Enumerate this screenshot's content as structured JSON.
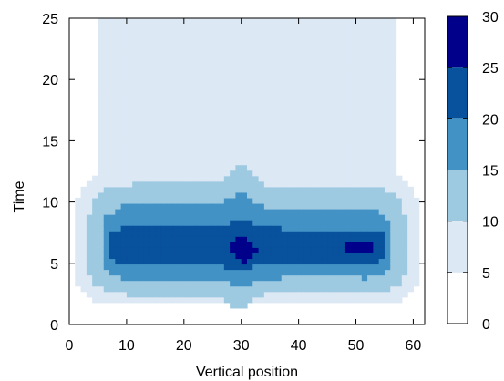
{
  "chart_data": {
    "type": "heatmap",
    "title": "",
    "xlabel": "Vertical position",
    "ylabel": "Time",
    "xlim": [
      0,
      62
    ],
    "ylim": [
      0,
      25
    ],
    "xticks": [
      "0",
      "10",
      "20",
      "30",
      "40",
      "50",
      "60"
    ],
    "yticks": [
      "0",
      "5",
      "10",
      "15",
      "20",
      "25"
    ],
    "colorbar": {
      "range": [
        0,
        30
      ],
      "ticks": [
        "0",
        "5",
        "10",
        "15",
        "20",
        "25",
        "30"
      ],
      "levels": [
        {
          "from": 0,
          "to": 5,
          "color": "#ffffff"
        },
        {
          "from": 5,
          "to": 10,
          "color": "#dde8f5"
        },
        {
          "from": 10,
          "to": 15,
          "color": "#9ecae1"
        },
        {
          "from": 15,
          "to": 20,
          "color": "#4292c6"
        },
        {
          "from": 20,
          "to": 25,
          "color": "#08519c"
        },
        {
          "from": 25,
          "to": 30,
          "color": "#00008b"
        }
      ]
    },
    "field": {
      "x_extent": [
        5.2,
        56.8
      ],
      "x_extent_low": [
        1.0,
        61.0
      ],
      "bands": [
        {
          "level": 1,
          "x_range": [
            5.2,
            56.8
          ],
          "y_range": [
            9,
            25
          ]
        },
        {
          "level": 1,
          "x_range": [
            1.2,
            60.8
          ],
          "t_peak": 6.2,
          "half_width": 5.2,
          "bump": 0.0
        },
        {
          "level": 2,
          "x_range": [
            3.5,
            58.5
          ],
          "t_peak": 6.2,
          "half_width": 4.3,
          "bump": 1.6
        },
        {
          "level": 3,
          "x_range": [
            5.8,
            56.2
          ],
          "t_peak": 6.2,
          "half_width": 2.9,
          "bump": 0.9
        },
        {
          "level": 4,
          "x_range": [
            6.8,
            55.2
          ],
          "t_peak": 6.2,
          "half_width": 1.5,
          "bump": 0.5
        },
        {
          "level": 5,
          "x_range": [
            27.3,
            33.0
          ],
          "t_peak": 6.2,
          "half_width": 1.3,
          "bump": 0.0
        },
        {
          "level": 5,
          "x_range": [
            46.0,
            54.0
          ],
          "t_peak": 6.3,
          "half_width": 0.25,
          "bump": 0.0
        }
      ]
    }
  }
}
